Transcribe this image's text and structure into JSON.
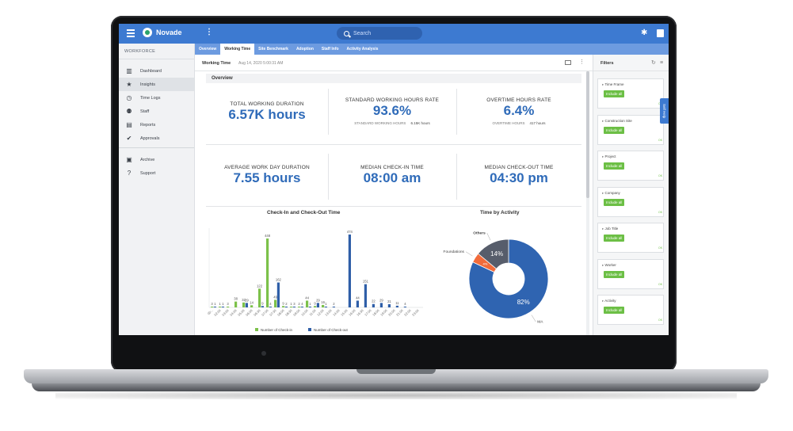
{
  "app": {
    "brand": "Novade"
  },
  "search": {
    "placeholder": "Search"
  },
  "sidebar": {
    "heading": "WORKFORCE",
    "items": [
      {
        "label": "Dashboard",
        "icon": "bar-chart-icon"
      },
      {
        "label": "Insights",
        "icon": "star-icon"
      },
      {
        "label": "Time Logs",
        "icon": "clock-icon"
      },
      {
        "label": "Staff",
        "icon": "group-icon"
      },
      {
        "label": "Reports",
        "icon": "document-icon"
      },
      {
        "label": "Approvals",
        "icon": "check-circle-icon"
      }
    ],
    "items2": [
      {
        "label": "Archive",
        "icon": "archive-icon"
      },
      {
        "label": "Support",
        "icon": "help-icon"
      }
    ]
  },
  "tabs": [
    "Overview",
    "Working Time",
    "Site Benchmark",
    "Adoption",
    "Staff Info",
    "Activity Analysis"
  ],
  "subheader": {
    "title": "Working Time",
    "date": "Aug 14, 2020 5:00:31 AM"
  },
  "overview": {
    "label": "Overview"
  },
  "kpis": {
    "total": {
      "label": "TOTAL WORKING DURATION",
      "value": "6.57K hours"
    },
    "standard": {
      "label": "STANDARD WORKING HOURS RATE",
      "value": "93.6%",
      "sub_label": "STANDARD WORKING HOURS",
      "sub_value": "6.15K hours"
    },
    "overtime": {
      "label": "OVERTIME HOURS RATE",
      "value": "6.4%",
      "sub_label": "OVERTIME HOURS",
      "sub_value": "417 hours"
    },
    "avg_day": {
      "label": "AVERAGE WORK DAY DURATION",
      "value": "7.55 hours"
    },
    "checkin": {
      "label": "MEDIAN CHECK-IN TIME",
      "value": "08:00 am"
    },
    "checkout": {
      "label": "MEDIAN CHECK-OUT TIME",
      "value": "04:30 pm"
    }
  },
  "chart_data": [
    {
      "type": "bar",
      "title": "Check-In and Check-Out Time",
      "categories": [
        "00:..",
        "02:00",
        "03:00",
        "04:00",
        "05:00",
        "06:00",
        "06:30",
        "07:00",
        "07:30",
        "08:00",
        "08:30",
        "09:00",
        "10:00",
        "11:00",
        "12:00",
        "13:00",
        "14:00",
        "15:00",
        "16:00",
        "16:30",
        "17:00",
        "18:00",
        "19:00",
        "20:00",
        "21:00",
        "22:00",
        "23:00"
      ],
      "series": [
        {
          "name": "Number of Check-in",
          "color": "#7cc14a",
          "values": [
            3,
            1,
            3,
            38,
            32,
            14,
            122,
            448,
            49,
            9,
            1,
            2,
            44,
            9,
            16,
            0,
            0,
            0,
            0,
            0,
            0,
            0,
            0,
            0,
            0,
            0,
            0
          ]
        },
        {
          "name": "Number of Check-out",
          "color": "#2f5fa8",
          "values": [
            1,
            1,
            0,
            0,
            29,
            0,
            9,
            4,
            162,
            2,
            3,
            4,
            1,
            29,
            1,
            2,
            0,
            474,
            44,
            151,
            22,
            29,
            21,
            11,
            4,
            0,
            0
          ]
        }
      ],
      "legend": "bottom"
    },
    {
      "type": "pie",
      "title": "Time by Activity",
      "slices": [
        {
          "label": "MA",
          "value": 82,
          "color": "#2f64b1",
          "text": "82%"
        },
        {
          "label": "Foundations",
          "value": 4,
          "color": "#f26b3a",
          "text": "4%"
        },
        {
          "label": "Others",
          "value": 14,
          "color": "#575d6b",
          "text": "14%"
        }
      ]
    }
  ],
  "filters": {
    "title": "Filters",
    "include_label": "Include all",
    "ok_label": "OK",
    "groups": [
      "Time Frame",
      "Construction Site",
      "Project",
      "Company",
      "Job Title",
      "Worker",
      "Activity"
    ]
  },
  "self_help": "Self Help"
}
